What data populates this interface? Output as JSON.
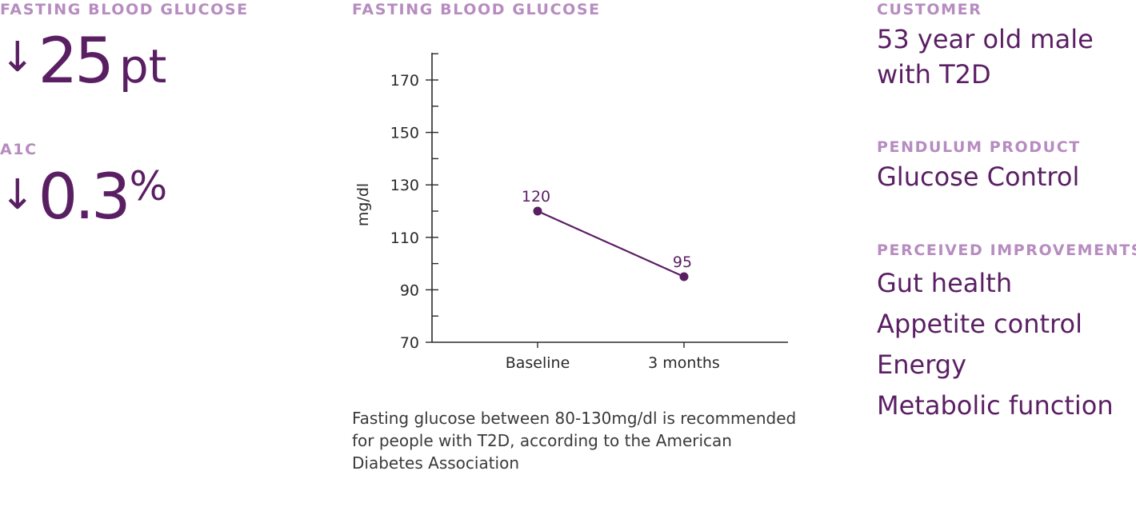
{
  "left_stats": {
    "glucose_label": "FASTING BLOOD GLUCOSE",
    "glucose_arrow": "↓",
    "glucose_value": "25",
    "glucose_unit": "pt",
    "a1c_label": "A1C",
    "a1c_arrow": "↓",
    "a1c_value": "0.3",
    "a1c_unit": "%"
  },
  "chart_section": {
    "title": "FASTING BLOOD GLUCOSE",
    "footnote": "Fasting glucose between 80-130mg/dl is recommended for people with T2D, according to the American Diabetes Association"
  },
  "chart_data": {
    "type": "line",
    "title": "FASTING BLOOD GLUCOSE",
    "xlabel": "",
    "ylabel": "mg/dl",
    "categories": [
      "Baseline",
      "3 months"
    ],
    "values": [
      120,
      95
    ],
    "data_labels": [
      "120",
      "95"
    ],
    "ylim": [
      70,
      180
    ],
    "yticks": [
      70,
      90,
      110,
      130,
      150,
      170
    ],
    "grid": false,
    "color": "#5a1f63"
  },
  "customer": {
    "label": "CUSTOMER",
    "line1": "53 year old male",
    "line2": "with T2D"
  },
  "product": {
    "label": "PENDULUM PRODUCT",
    "value": "Glucose Control"
  },
  "improvements": {
    "label": "PERCEIVED IMPROVEMENTS",
    "items": [
      "Gut health",
      "Appetite control",
      "Energy",
      "Metabolic function"
    ]
  }
}
